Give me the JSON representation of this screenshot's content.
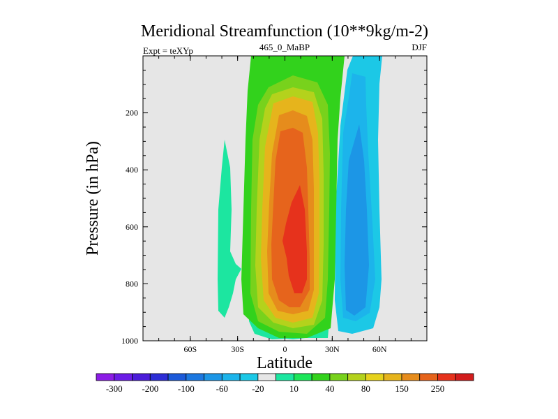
{
  "chart_data": {
    "type": "heatmap",
    "title": "Meridional Streamfunction (10**9kg/m-2)",
    "left_string": "Expt = teXYp",
    "center_string": "465_0_MaBP",
    "right_string": "DJF",
    "xlabel": "Latitude",
    "ylabel": "Pressure (in hPa)",
    "xlim": [
      -90,
      90
    ],
    "ylim": [
      1000,
      0
    ],
    "x_ticks": [
      {
        "value": -60,
        "label": "60S"
      },
      {
        "value": -30,
        "label": "30S"
      },
      {
        "value": 0,
        "label": "0"
      },
      {
        "value": 30,
        "label": "30N"
      },
      {
        "value": 60,
        "label": "60N"
      }
    ],
    "y_ticks": [
      {
        "value": 200,
        "label": "200"
      },
      {
        "value": 400,
        "label": "400"
      },
      {
        "value": 600,
        "label": "600"
      },
      {
        "value": 800,
        "label": "800"
      },
      {
        "value": 1000,
        "label": "1000"
      }
    ],
    "background": "#e6e6e6",
    "colorbar": {
      "levels": [
        "-300",
        "-200",
        "-100",
        "-60",
        "-20",
        "10",
        "40",
        "80",
        "150",
        "250"
      ],
      "colors": [
        "#8c1ce6",
        "#6b1ce6",
        "#4b1cd9",
        "#2d2ed6",
        "#1c5ad9",
        "#1c78e0",
        "#1c96e6",
        "#1cb4eb",
        "#1cc8e6",
        "#e6e6e6",
        "#1ce6a0",
        "#1ce65a",
        "#32d21c",
        "#78d21c",
        "#b4d21c",
        "#e6d21c",
        "#e6b41c",
        "#e68c1c",
        "#e6641c",
        "#e6321c",
        "#d21c1c"
      ]
    },
    "features": [
      {
        "name": "positive cell",
        "center_lat": 5,
        "center_p": 650,
        "lat_range": [
          -22,
          30
        ],
        "p_range": [
          0,
          1000
        ],
        "peak_level": "150-250"
      },
      {
        "name": "negative cell",
        "center_lat": 45,
        "center_p": 600,
        "lat_range": [
          32,
          58
        ],
        "p_range": [
          0,
          1000
        ],
        "peak_level": "-60 to -20"
      },
      {
        "name": "weak southern cell",
        "center_lat": -35,
        "center_p": 650,
        "lat_range": [
          -45,
          -25
        ],
        "p_range": [
          300,
          950
        ],
        "peak_level": "10-40"
      }
    ]
  }
}
